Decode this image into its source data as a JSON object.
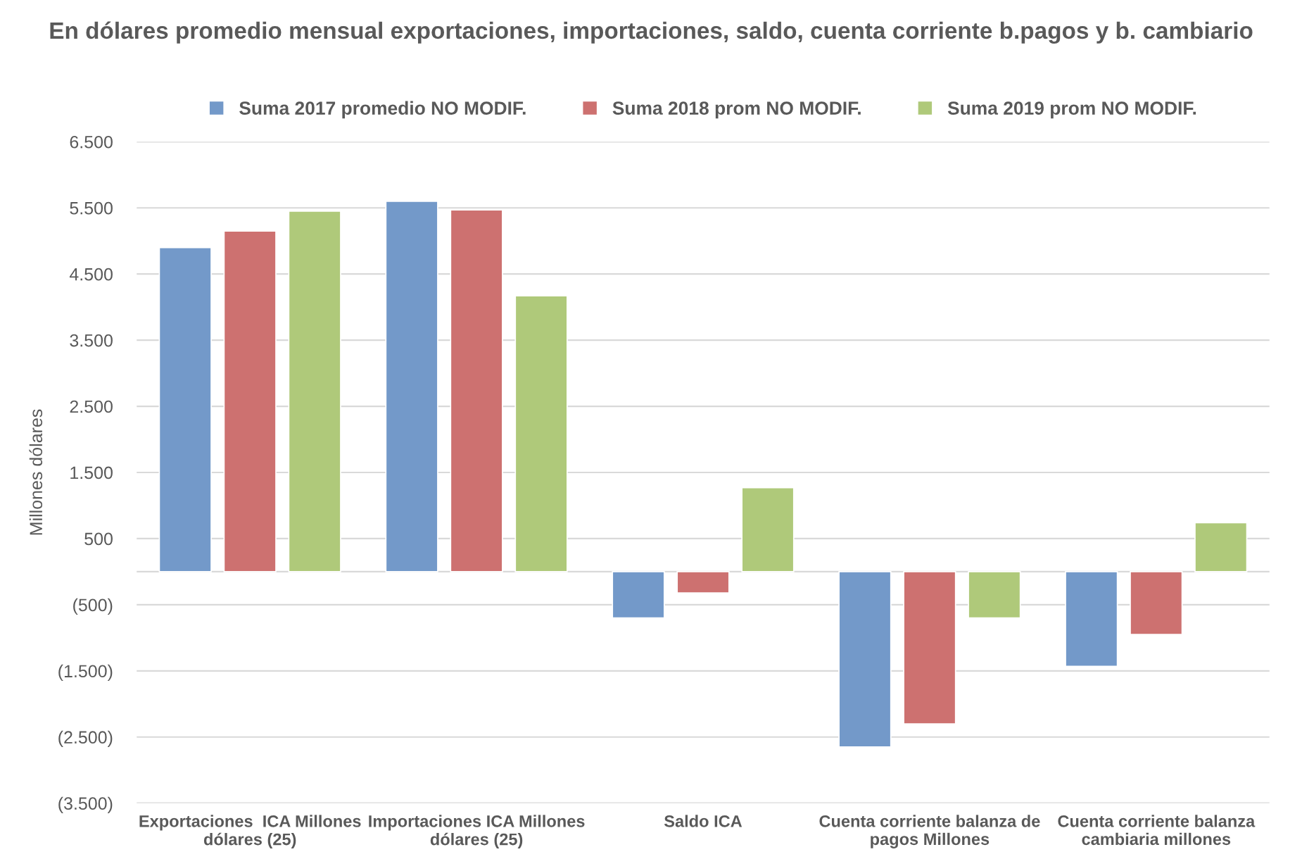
{
  "chart_data": {
    "type": "bar",
    "title": "En dólares promedio mensual exportaciones, importaciones, saldo, cuenta corriente b.pagos y b. cambiario",
    "ylabel": "Millones dólares",
    "categories": [
      "Exportaciones  ICA Millones dólares (25)",
      "Importaciones ICA Millones dólares (25)",
      "Saldo ICA",
      "Cuenta corriente balanza de pagos Millones",
      "Cuenta corriente balanza cambiaria millones"
    ],
    "series": [
      {
        "name": "Suma 2017 promedio NO MODIF.",
        "color": "#7399c9",
        "values": [
          4900,
          5600,
          -700,
          -2650,
          -1430
        ]
      },
      {
        "name": "Suma 2018 prom NO MODIF.",
        "color": "#cd7170",
        "values": [
          5150,
          5470,
          -320,
          -2300,
          -950
        ]
      },
      {
        "name": "Suma 2019 prom NO MODIF.",
        "color": "#afc97a",
        "values": [
          5450,
          4170,
          1270,
          -700,
          740
        ]
      }
    ],
    "ylim": [
      -3500,
      6500
    ],
    "yticks": [
      {
        "value": -3500,
        "label": "(3.500)"
      },
      {
        "value": -2500,
        "label": "(2.500)"
      },
      {
        "value": -1500,
        "label": "(1.500)"
      },
      {
        "value": -500,
        "label": "(500)"
      },
      500,
      {
        "value": 1500,
        "label": "1.500"
      },
      {
        "value": 2500,
        "label": "2.500"
      },
      {
        "value": 3500,
        "label": "3.500"
      },
      {
        "value": 4500,
        "label": "4.500"
      },
      {
        "value": 5500,
        "label": "5.500"
      },
      {
        "value": 6500,
        "label": "6.500"
      }
    ],
    "grid": "y",
    "legend": "top"
  }
}
